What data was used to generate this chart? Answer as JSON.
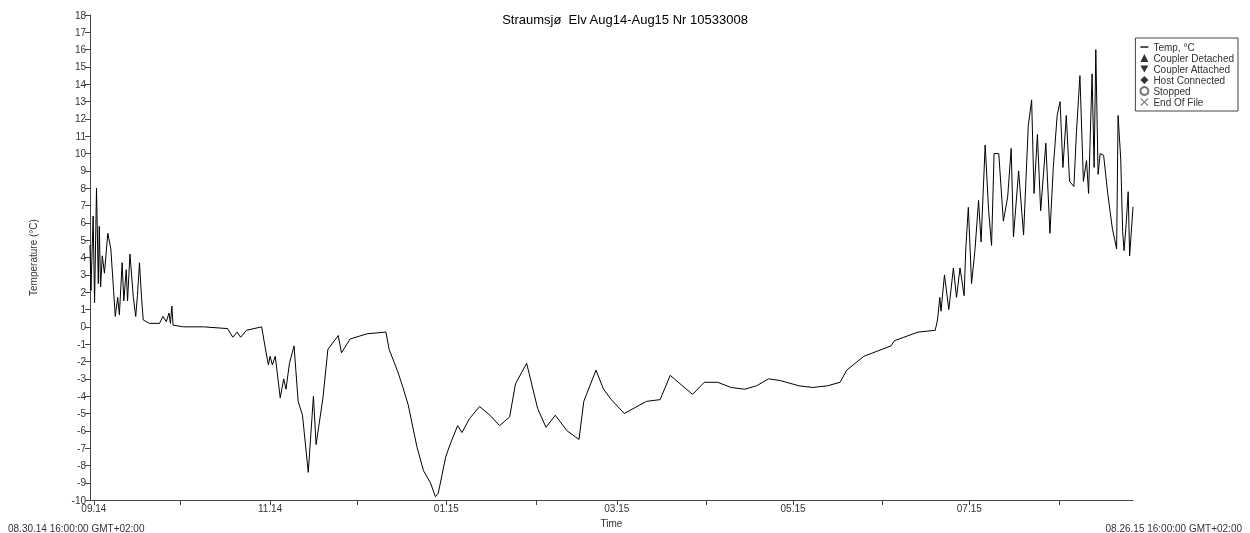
{
  "chart_data": {
    "type": "line",
    "title": "Straumsjø  Elv Aug14-Aug15 Nr 10533008",
    "xlabel": "Time",
    "ylabel": "Temperature (°C)",
    "xlim": [
      "2014-08-30T16:00",
      "2015-08-26T16:00"
    ],
    "annotations": [
      "08.30.14 16:00:00 GMT+02:00",
      "08.26.15 16:00:00 GMT+02:00"
    ],
    "xticks": [
      {
        "value": "2014-09-01",
        "label": "09.14"
      },
      {
        "value": "2014-10-01",
        "label": null
      },
      {
        "value": "2014-11-01",
        "label": "11.14"
      },
      {
        "value": "2014-12-01",
        "label": null
      },
      {
        "value": "2015-01-01",
        "label": "01.15"
      },
      {
        "value": "2015-02-01",
        "label": null
      },
      {
        "value": "2015-03-01",
        "label": "03.15"
      },
      {
        "value": "2015-04-01",
        "label": null
      },
      {
        "value": "2015-05-01",
        "label": "05.15"
      },
      {
        "value": "2015-06-01",
        "label": null
      },
      {
        "value": "2015-07-01",
        "label": "07.15"
      },
      {
        "value": "2015-08-01",
        "label": null
      }
    ],
    "ylim": [
      -10,
      18
    ],
    "yticks": [
      -10,
      -9,
      -8,
      -7,
      -6,
      -5,
      -4,
      -3,
      -2,
      -1,
      0,
      1,
      2,
      3,
      4,
      5,
      6,
      7,
      8,
      9,
      10,
      11,
      12,
      13,
      14,
      15,
      16,
      17,
      18
    ],
    "grid": false,
    "legend": "top right",
    "marker": "none",
    "line_style": "solid",
    "series": [
      {
        "name": "Temp, °C",
        "color": "#000000",
        "x": [
          "2014-08-30T16:00",
          "2014-08-31",
          "2014-08-31T18:00",
          "2014-09-01T06:00",
          "2014-09-01T22:00",
          "2014-09-02T13:00",
          "2014-09-02T21:00",
          "2014-09-03T08:00",
          "2014-09-03T22:00",
          "2014-09-04T16:00",
          "2014-09-05T20:00",
          "2014-09-06T21:00",
          "2014-09-07T20:00",
          "2014-09-08T10:00",
          "2014-09-09T06:00",
          "2014-09-09T20:00",
          "2014-09-10T19:00",
          "2014-09-11T09:00",
          "2014-09-12T05:00",
          "2014-09-12T16:00",
          "2014-09-13T12:00",
          "2014-09-14T16:00",
          "2014-09-15T12:00",
          "2014-09-16T02:00",
          "2014-09-16T19:00",
          "2014-09-17T12:00",
          "2014-09-18T02:00",
          "2014-09-20T05:00",
          "2014-09-23T17:00",
          "2014-09-24T22:00",
          "2014-09-26T02:00",
          "2014-09-27",
          "2014-09-27T12:00",
          "2014-09-28",
          "2014-09-28T10:00",
          "2014-10-02",
          "2014-10-09",
          "2014-10-17T07:00",
          "2014-10-19T02:00",
          "2014-10-20T14:00",
          "2014-10-21T19:00",
          "2014-10-23T19:00",
          "2014-10-29T02:00",
          "2014-10-30T05:00",
          "2014-10-31T10:00",
          "2014-11-01",
          "2014-11-01T19:00",
          "2014-11-02T19:00",
          "2014-11-04T12:00",
          "2014-11-05T17:00",
          "2014-11-06T12:00",
          "2014-11-07T17:00",
          "2014-11-09T07:00",
          "2014-11-10T17:00",
          "2014-11-12T05:00",
          "2014-11-14T05:00",
          "2014-11-16",
          "2014-11-16T22:00",
          "2014-11-19T07:00",
          "2014-11-21",
          "2014-11-24T14:00",
          "2014-11-25T17:00",
          "2014-11-28T17:00",
          "2014-12-04T14:00",
          "2014-12-11T02:00",
          "2014-12-12T05:00",
          "2014-12-15T05:00",
          "2014-12-17",
          "2014-12-18T19:00",
          "2014-12-21T19:00",
          "2014-12-24T02:00",
          "2014-12-26T12:00",
          "2014-12-28T05:00",
          "2014-12-29T05:00",
          "2014-12-31T19:00",
          "2015-01-02T12:00",
          "2015-01-04T22:00",
          "2015-01-06T10:00",
          "2015-01-09",
          "2015-01-12T12:00",
          "2015-01-16T02:00",
          "2015-01-19T10:00",
          "2015-01-22T22:00",
          "2015-01-24T22:00",
          "2015-01-28T19:00",
          "2015-02-01T14:00",
          "2015-02-04T12:00",
          "2015-02-07T17:00",
          "2015-02-11T19:00",
          "2015-02-15T22:00",
          "2015-02-17T14:00",
          "2015-02-21T19:00",
          "2015-02-24T10:00",
          "2015-02-27T02:00",
          "2015-03-03T14:00",
          "2015-03-11T07:00",
          "2015-03-16",
          "2015-03-19T12:00",
          "2015-03-27T05:00",
          "2015-03-31T07:00",
          "2015-04-04T22:00",
          "2015-04-09T14:00",
          "2015-04-14T07:00",
          "2015-04-18T10:00",
          "2015-04-22T12:00",
          "2015-04-26T14:00",
          "2015-05-03",
          "2015-05-07T19:00",
          "2015-05-13",
          "2015-05-17T07:00",
          "2015-05-19T14:00",
          "2015-05-25T12:00",
          "2015-05-30T05:00",
          "2015-06-03T22:00",
          "2015-06-05T02:00",
          "2015-06-13T07:00",
          "2015-06-19T05:00",
          "2015-06-20",
          "2015-06-20T19:00",
          "2015-06-21T05:00",
          "2015-06-22T10:00",
          "2015-06-23T22:00",
          "2015-06-25T12:00",
          "2015-06-26T14:00",
          "2015-06-27T19:00",
          "2015-06-29T05:00",
          "2015-06-29T19:00",
          "2015-06-30T16:00",
          "2015-07-01T19:00",
          "2015-07-03",
          "2015-07-04T05:00",
          "2015-07-05T02:00",
          "2015-07-06T12:00",
          "2015-07-07T17:00",
          "2015-07-08T17:00",
          "2015-07-09T14:00",
          "2015-07-11T05:00",
          "2015-07-12T19:00",
          "2015-07-14T07:00",
          "2015-07-15T12:00",
          "2015-07-16T07:00",
          "2015-07-18T02:00",
          "2015-07-19T19:00",
          "2015-07-21T10:00",
          "2015-07-22T14:00",
          "2015-07-23T10:00",
          "2015-07-24T14:00",
          "2015-07-25T17:00",
          "2015-07-27T12:00",
          "2015-07-28T22:00",
          "2015-07-30T02:00",
          "2015-07-31T10:00",
          "2015-08-01T10:00",
          "2015-08-02T10:00",
          "2015-08-03T14:00",
          "2015-08-04T17:00",
          "2015-08-06T05:00",
          "2015-08-07T02:00",
          "2015-08-08T07:00",
          "2015-08-09T12:00",
          "2015-08-10T14:00",
          "2015-08-11T07:00",
          "2015-08-12T12:00",
          "2015-08-13T05:00",
          "2015-08-13T19:00",
          "2015-08-14T14:00",
          "2015-08-15T07:00",
          "2015-08-16T12:00",
          "2015-08-17T22:00",
          "2015-08-19T12:00",
          "2015-08-21",
          "2015-08-21T12:00",
          "2015-08-22T10:00",
          "2015-08-23T02:00",
          "2015-08-23T14:00",
          "2015-08-24T07:00",
          "2015-08-25",
          "2015-08-25T12:00",
          "2015-08-26T16:00"
        ],
        "values": [
          4.7,
          2.1,
          6.4,
          1.4,
          8.0,
          2.5,
          5.8,
          2.3,
          4.1,
          3.1,
          5.4,
          4.5,
          2.1,
          0.6,
          1.7,
          0.7,
          3.7,
          1.5,
          3.3,
          1.5,
          4.2,
          1.7,
          0.6,
          1.8,
          3.7,
          1.7,
          0.4,
          0.2,
          0.2,
          0.6,
          0.3,
          0.8,
          0.2,
          1.2,
          0.1,
          0,
          0,
          -0.1,
          -0.6,
          -0.3,
          -0.6,
          -0.2,
          0,
          -1.1,
          -2.2,
          -1.7,
          -2.2,
          -1.7,
          -4.1,
          -3.0,
          -3.6,
          -2.1,
          -1.1,
          -4.3,
          -5.1,
          -8.4,
          -4.0,
          -6.8,
          -4.1,
          -1.3,
          -0.5,
          -1.5,
          -0.7,
          -0.4,
          -0.3,
          -1.3,
          -2.6,
          -3.5,
          -4.5,
          -6.9,
          -8.3,
          -9.0,
          -9.8,
          -9.6,
          -7.5,
          -6.7,
          -5.7,
          -6.1,
          -5.3,
          -4.6,
          -5.1,
          -5.7,
          -5.2,
          -3.3,
          -2.1,
          -4.7,
          -5.8,
          -5.1,
          -6.0,
          -6.5,
          -4.3,
          -2.5,
          -3.6,
          -4.2,
          -5.0,
          -4.3,
          -4.2,
          -2.8,
          -3.9,
          -3.2,
          -3.2,
          -3.5,
          -3.6,
          -3.4,
          -3.0,
          -3.1,
          -3.4,
          -3.5,
          -3.4,
          -3.2,
          -2.5,
          -1.7,
          -1.4,
          -1.1,
          -0.8,
          -0.3,
          -0.2,
          0.4,
          1.7,
          0.9,
          3.0,
          1.0,
          3.4,
          1.7,
          3.4,
          1.8,
          4.5,
          6.9,
          2.5,
          4.5,
          7.3,
          4.9,
          10.5,
          6.7,
          4.7,
          10.0,
          10.0,
          6.1,
          7.5,
          10.3,
          5.2,
          9.0,
          5.3,
          11.6,
          13.1,
          7.7,
          11.1,
          6.7,
          10.6,
          5.4,
          9.2,
          12.2,
          13.0,
          9.2,
          12.2,
          8.4,
          8.1,
          11.2,
          14.5,
          8.4,
          9.6,
          7.7,
          14.6,
          9.2,
          16.0,
          8.8,
          10.0,
          9.9,
          7.7,
          5.7,
          4.5,
          12.2,
          9.7,
          5.5,
          4.4,
          5.9,
          7.8,
          4.1,
          6.9
        ]
      },
      {
        "name": "Coupler Detached",
        "color": "#000000",
        "type": "scatter",
        "marker": "triangle"
      },
      {
        "name": "Coupler Attached",
        "color": "#000000",
        "type": "scatter",
        "marker": "triangle-down"
      },
      {
        "name": "Host Connected",
        "color": "#000000",
        "type": "scatter",
        "marker": "diamond"
      },
      {
        "name": "Stopped",
        "color": "#555555",
        "type": "scatter",
        "marker": "circle"
      },
      {
        "name": "End Of File",
        "color": "#555555",
        "type": "scatter",
        "marker": "cross"
      }
    ]
  }
}
